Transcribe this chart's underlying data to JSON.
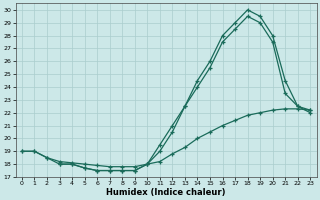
{
  "xlabel": "Humidex (Indice chaleur)",
  "bg_color": "#cce8e8",
  "grid_color": "#aacece",
  "line_color": "#1a6b5a",
  "xlim": [
    -0.5,
    23.5
  ],
  "ylim": [
    17,
    30.5
  ],
  "yticks": [
    17,
    18,
    19,
    20,
    21,
    22,
    23,
    24,
    25,
    26,
    27,
    28,
    29,
    30
  ],
  "xticks": [
    0,
    1,
    2,
    3,
    4,
    5,
    6,
    7,
    8,
    9,
    10,
    11,
    12,
    13,
    14,
    15,
    16,
    17,
    18,
    19,
    20,
    21,
    22,
    23
  ],
  "line1_x": [
    0,
    1,
    2,
    3,
    4,
    5,
    6,
    7,
    8,
    9,
    10,
    11,
    12,
    13,
    14,
    15,
    16,
    17,
    18,
    19,
    20,
    21,
    22,
    23
  ],
  "line1_y": [
    19.0,
    19.0,
    18.5,
    18.0,
    18.0,
    17.7,
    17.5,
    17.5,
    17.5,
    17.5,
    18.0,
    19.5,
    21.0,
    22.5,
    24.5,
    26.0,
    28.0,
    29.0,
    30.0,
    29.5,
    28.0,
    24.5,
    22.5,
    22.2
  ],
  "line2_x": [
    3,
    4,
    5,
    6,
    7,
    8,
    9,
    10,
    11,
    12,
    13,
    14,
    15,
    16,
    17,
    18,
    19,
    20,
    21,
    22,
    23
  ],
  "line2_y": [
    18.0,
    18.0,
    17.7,
    17.5,
    17.5,
    17.5,
    17.5,
    18.0,
    19.0,
    20.5,
    22.5,
    24.0,
    25.5,
    27.5,
    28.5,
    29.5,
    29.0,
    27.5,
    23.5,
    22.5,
    22.0
  ],
  "line3_x": [
    0,
    1,
    2,
    3,
    4,
    5,
    6,
    7,
    8,
    9,
    10,
    11,
    12,
    13,
    14,
    15,
    16,
    17,
    18,
    19,
    20,
    21,
    22,
    23
  ],
  "line3_y": [
    19.0,
    19.0,
    18.5,
    18.2,
    18.1,
    18.0,
    17.9,
    17.8,
    17.8,
    17.8,
    18.0,
    18.2,
    18.8,
    19.3,
    20.0,
    20.5,
    21.0,
    21.4,
    21.8,
    22.0,
    22.2,
    22.3,
    22.3,
    22.2
  ]
}
